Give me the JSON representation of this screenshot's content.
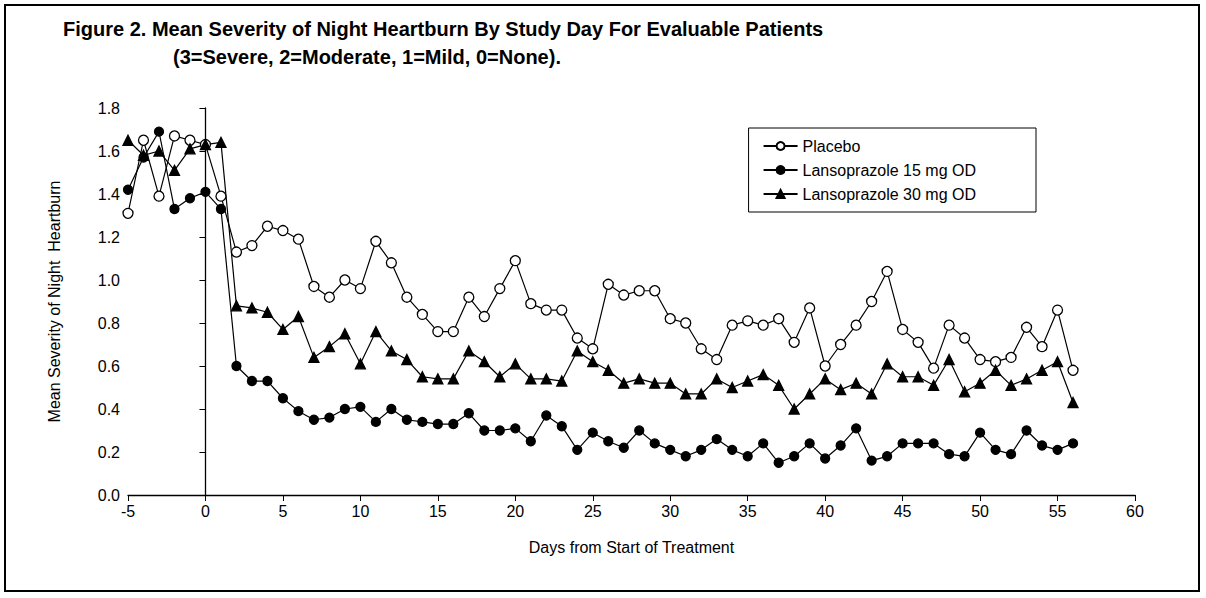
{
  "chart_data": {
    "type": "line",
    "title": "Figure 2. Mean Severity of Night Heartburn By Study Day For Evaluable Patients",
    "subtitle": "(3=Severe, 2=Moderate, 1=Mild, 0=None).",
    "x_label": "Days from Start of Treatment",
    "y_label": "Mean Severity of Night  Heartburn",
    "x": [
      -5,
      -4,
      -3,
      -2,
      -1,
      0,
      1,
      2,
      3,
      4,
      5,
      6,
      7,
      8,
      9,
      10,
      11,
      12,
      13,
      14,
      15,
      16,
      17,
      18,
      19,
      20,
      21,
      22,
      23,
      24,
      25,
      26,
      27,
      28,
      29,
      30,
      31,
      32,
      33,
      34,
      35,
      36,
      37,
      38,
      39,
      40,
      41,
      42,
      43,
      44,
      45,
      46,
      47,
      48,
      49,
      50,
      51,
      52,
      53,
      54,
      55,
      56
    ],
    "series": [
      {
        "name": "Placebo",
        "color": "#000000",
        "marker": "open_circle",
        "line_style": "solid",
        "values": [
          1.31,
          1.65,
          1.39,
          1.67,
          1.65,
          1.63,
          1.39,
          1.13,
          1.16,
          1.25,
          1.23,
          1.19,
          0.97,
          0.92,
          1.0,
          0.96,
          1.18,
          1.08,
          0.92,
          0.84,
          0.76,
          0.76,
          0.92,
          0.83,
          0.96,
          1.09,
          0.89,
          0.86,
          0.86,
          0.73,
          0.68,
          0.98,
          0.93,
          0.95,
          0.95,
          0.82,
          0.8,
          0.68,
          0.63,
          0.79,
          0.81,
          0.79,
          0.82,
          0.71,
          0.87,
          0.6,
          0.7,
          0.79,
          0.9,
          1.04,
          0.77,
          0.71,
          0.59,
          0.79,
          0.73,
          0.63,
          0.62,
          0.64,
          0.78,
          0.69,
          0.86,
          0.58
        ]
      },
      {
        "name": "Lansoprazole 15 mg OD",
        "color": "#000000",
        "marker": "circle",
        "line_style": "solid",
        "values": [
          1.42,
          1.57,
          1.69,
          1.33,
          1.38,
          1.41,
          1.33,
          0.6,
          0.53,
          0.53,
          0.45,
          0.39,
          0.35,
          0.36,
          0.4,
          0.41,
          0.34,
          0.4,
          0.35,
          0.34,
          0.33,
          0.33,
          0.38,
          0.3,
          0.3,
          0.31,
          0.25,
          0.37,
          0.32,
          0.21,
          0.29,
          0.25,
          0.22,
          0.3,
          0.24,
          0.21,
          0.18,
          0.21,
          0.26,
          0.21,
          0.18,
          0.24,
          0.15,
          0.18,
          0.24,
          0.17,
          0.23,
          0.31,
          0.16,
          0.18,
          0.24,
          0.24,
          0.24,
          0.19,
          0.18,
          0.29,
          0.21,
          0.19,
          0.3,
          0.23,
          0.21,
          0.24
        ]
      },
      {
        "name": "Lansoprazole 30 mg OD",
        "color": "#000000",
        "marker": "triangle",
        "line_style": "solid",
        "values": [
          1.65,
          1.58,
          1.6,
          1.51,
          1.61,
          1.63,
          1.64,
          0.88,
          0.87,
          0.85,
          0.77,
          0.83,
          0.64,
          0.69,
          0.75,
          0.61,
          0.76,
          0.67,
          0.63,
          0.55,
          0.54,
          0.54,
          0.67,
          0.62,
          0.55,
          0.61,
          0.54,
          0.54,
          0.53,
          0.67,
          0.62,
          0.58,
          0.52,
          0.54,
          0.52,
          0.52,
          0.47,
          0.47,
          0.54,
          0.5,
          0.53,
          0.56,
          0.51,
          0.4,
          0.47,
          0.54,
          0.49,
          0.52,
          0.47,
          0.61,
          0.55,
          0.55,
          0.51,
          0.63,
          0.48,
          0.52,
          0.58,
          0.51,
          0.54,
          0.58,
          0.62,
          0.43
        ]
      }
    ],
    "xlim": [
      -5,
      60
    ],
    "xticks": [
      -5,
      0,
      5,
      10,
      15,
      20,
      25,
      30,
      35,
      40,
      45,
      50,
      55,
      60
    ],
    "ylim": [
      0,
      1.8
    ],
    "yticks": [
      {
        "value": 0,
        "label": "0.0"
      },
      0.2,
      0.4,
      0.6,
      0.8,
      {
        "value": 1,
        "label": "1.0"
      },
      1.2,
      1.4,
      1.6,
      1.8
    ],
    "grid": false,
    "legend": "upper right"
  }
}
